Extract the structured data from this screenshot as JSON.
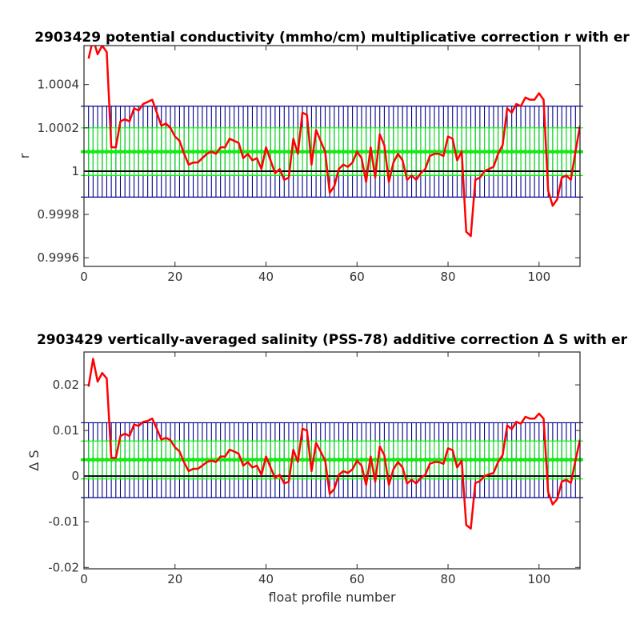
{
  "chart_data": [
    {
      "type": "line",
      "title": "2903429 potential conductivity (mmho/cm) multiplicative correction r with er",
      "xlabel": "",
      "ylabel": "r",
      "xlim": [
        0,
        109
      ],
      "ylim": [
        0.99956,
        1.00058
      ],
      "xticks": [
        0,
        20,
        40,
        60,
        80,
        100
      ],
      "xtick_labels": [
        "0",
        "20",
        "40",
        "60",
        "80",
        "100"
      ],
      "yticks": [
        0.9996,
        0.9998,
        1,
        1.0002,
        1.0004
      ],
      "ytick_labels": [
        "0.9996",
        "0.9998",
        "1",
        "1.0002",
        "1.0004"
      ],
      "grid": false,
      "reference_line": 1.0,
      "error_bands": [
        {
          "name": "blue",
          "lower": 0.99988,
          "upper": 1.0003,
          "color": "#00008b"
        },
        {
          "name": "green",
          "lower": 0.99998,
          "upper": 1.0002,
          "color": "#00ff00"
        }
      ],
      "mean_line": {
        "value": 1.00009,
        "color": "#00ff00"
      },
      "series": [
        {
          "color": "#ff0000",
          "x": [
            1,
            2,
            3,
            4,
            5,
            6,
            7,
            8,
            9,
            10,
            11,
            12,
            13,
            14,
            15,
            16,
            17,
            18,
            19,
            20,
            21,
            22,
            23,
            24,
            25,
            26,
            27,
            28,
            29,
            30,
            31,
            32,
            33,
            34,
            35,
            36,
            37,
            38,
            39,
            40,
            41,
            42,
            43,
            44,
            45,
            46,
            47,
            48,
            49,
            50,
            51,
            52,
            53,
            54,
            55,
            56,
            57,
            58,
            59,
            60,
            61,
            62,
            63,
            64,
            65,
            66,
            67,
            68,
            69,
            70,
            71,
            72,
            73,
            74,
            75,
            76,
            77,
            78,
            79,
            80,
            81,
            82,
            83,
            84,
            85,
            86,
            87,
            88,
            89,
            90,
            91,
            92,
            93,
            94,
            95,
            96,
            97,
            98,
            99,
            100,
            101,
            102,
            103,
            104,
            105,
            106,
            107,
            108,
            109
          ],
          "y": [
            1.00052,
            1.00061,
            1.00054,
            1.00058,
            1.00055,
            1.00011,
            1.00011,
            1.00023,
            1.00024,
            1.00023,
            1.00029,
            1.00028,
            1.00031,
            1.00032,
            1.00033,
            1.00027,
            1.00021,
            1.00022,
            1.0002,
            1.00016,
            1.00014,
            1.00008,
            1.00003,
            1.00004,
            1.00004,
            1.00006,
            1.00008,
            1.00009,
            1.00008,
            1.00011,
            1.00011,
            1.00015,
            1.00014,
            1.00013,
            1.00006,
            1.00008,
            1.00005,
            1.00006,
            1.00001,
            1.00011,
            1.00005,
            0.99999,
            1.00001,
            0.99996,
            0.99997,
            1.00015,
            1.00008,
            1.00027,
            1.00026,
            1.00003,
            1.00019,
            1.00014,
            1.00009,
            0.9999,
            0.99993,
            1.00001,
            1.00003,
            1.00002,
            1.00004,
            1.00009,
            1.00006,
            0.99995,
            1.00011,
            0.99997,
            1.00017,
            1.00012,
            0.99995,
            1.00004,
            1.00008,
            1.00005,
            0.99996,
            0.99998,
            0.99996,
            0.99999,
            1.00001,
            1.00007,
            1.00008,
            1.00008,
            1.00007,
            1.00016,
            1.00015,
            1.00005,
            1.00009,
            0.99972,
            0.9997,
            0.99996,
            0.99997,
            1.0,
            1.00001,
            1.00002,
            1.00008,
            1.00012,
            1.00029,
            1.00027,
            1.00031,
            1.0003,
            1.00034,
            1.00033,
            1.00033,
            1.00036,
            1.00033,
            0.99991,
            0.99984,
            0.99987,
            0.99997,
            0.99998,
            0.99996,
            1.00009,
            1.00021
          ]
        }
      ]
    },
    {
      "type": "line",
      "title": "2903429 vertically-averaged salinity (PSS-78) additive correction Δ S with er",
      "xlabel": "float profile number",
      "ylabel": "Δ S",
      "xlim": [
        0,
        109
      ],
      "ylim": [
        -0.0203,
        0.0272
      ],
      "xticks": [
        0,
        20,
        40,
        60,
        80,
        100
      ],
      "xtick_labels": [
        "0",
        "20",
        "40",
        "60",
        "80",
        "100"
      ],
      "yticks": [
        -0.02,
        -0.01,
        0,
        0.01,
        0.02
      ],
      "ytick_labels": [
        "-0.02",
        "-0.01",
        "0",
        "0.01",
        "0.02"
      ],
      "grid": false,
      "reference_line": 0,
      "error_bands": [
        {
          "name": "blue",
          "lower": -0.0047,
          "upper": 0.0117,
          "color": "#00008b"
        },
        {
          "name": "green",
          "lower": -0.0006,
          "upper": 0.0077,
          "color": "#00ff00"
        }
      ],
      "mean_line": {
        "value": 0.0036,
        "color": "#00ff00"
      },
      "series": [
        {
          "color": "#ff0000",
          "x": [
            1,
            2,
            3,
            4,
            5,
            6,
            7,
            8,
            9,
            10,
            11,
            12,
            13,
            14,
            15,
            16,
            17,
            18,
            19,
            20,
            21,
            22,
            23,
            24,
            25,
            26,
            27,
            28,
            29,
            30,
            31,
            32,
            33,
            34,
            35,
            36,
            37,
            38,
            39,
            40,
            41,
            42,
            43,
            44,
            45,
            46,
            47,
            48,
            49,
            50,
            51,
            52,
            53,
            54,
            55,
            56,
            57,
            58,
            59,
            60,
            61,
            62,
            63,
            64,
            65,
            66,
            67,
            68,
            69,
            70,
            71,
            72,
            73,
            74,
            75,
            76,
            77,
            78,
            79,
            80,
            81,
            82,
            83,
            84,
            85,
            86,
            87,
            88,
            89,
            90,
            91,
            92,
            93,
            94,
            95,
            96,
            97,
            98,
            99,
            100,
            101,
            102,
            103,
            104,
            105,
            106,
            107,
            108,
            109
          ],
          "y": [
            0.0196,
            0.0257,
            0.0207,
            0.0226,
            0.0214,
            0.004,
            0.004,
            0.0088,
            0.0093,
            0.0088,
            0.0113,
            0.011,
            0.0119,
            0.0121,
            0.0126,
            0.0104,
            0.008,
            0.0084,
            0.0079,
            0.0063,
            0.0054,
            0.003,
            0.0011,
            0.0016,
            0.0016,
            0.0023,
            0.0031,
            0.0034,
            0.0031,
            0.0043,
            0.0043,
            0.0058,
            0.0054,
            0.0049,
            0.0023,
            0.0031,
            0.0019,
            0.0023,
            0.0003,
            0.0043,
            0.0019,
            -0.0004,
            0.0003,
            -0.0016,
            -0.0012,
            0.0058,
            0.0031,
            0.0104,
            0.01,
            0.0011,
            0.0073,
            0.0054,
            0.0034,
            -0.0039,
            -0.0028,
            0.0003,
            0.0011,
            0.0007,
            0.0015,
            0.0034,
            0.0023,
            -0.0019,
            0.0043,
            -0.0012,
            0.0065,
            0.0046,
            -0.0019,
            0.0015,
            0.0031,
            0.0019,
            -0.0016,
            -0.0008,
            -0.0016,
            -0.0004,
            0.0003,
            0.0027,
            0.0031,
            0.0031,
            0.0027,
            0.0061,
            0.0057,
            0.0019,
            0.0034,
            -0.0107,
            -0.0115,
            -0.0015,
            -0.0011,
            0.0,
            0.0004,
            0.0007,
            0.0031,
            0.0046,
            0.0111,
            0.0103,
            0.0119,
            0.0115,
            0.013,
            0.0126,
            0.0126,
            0.0137,
            0.0126,
            -0.0035,
            -0.0062,
            -0.005,
            -0.0012,
            -0.0008,
            -0.0015,
            0.0034,
            0.008
          ]
        }
      ]
    }
  ]
}
